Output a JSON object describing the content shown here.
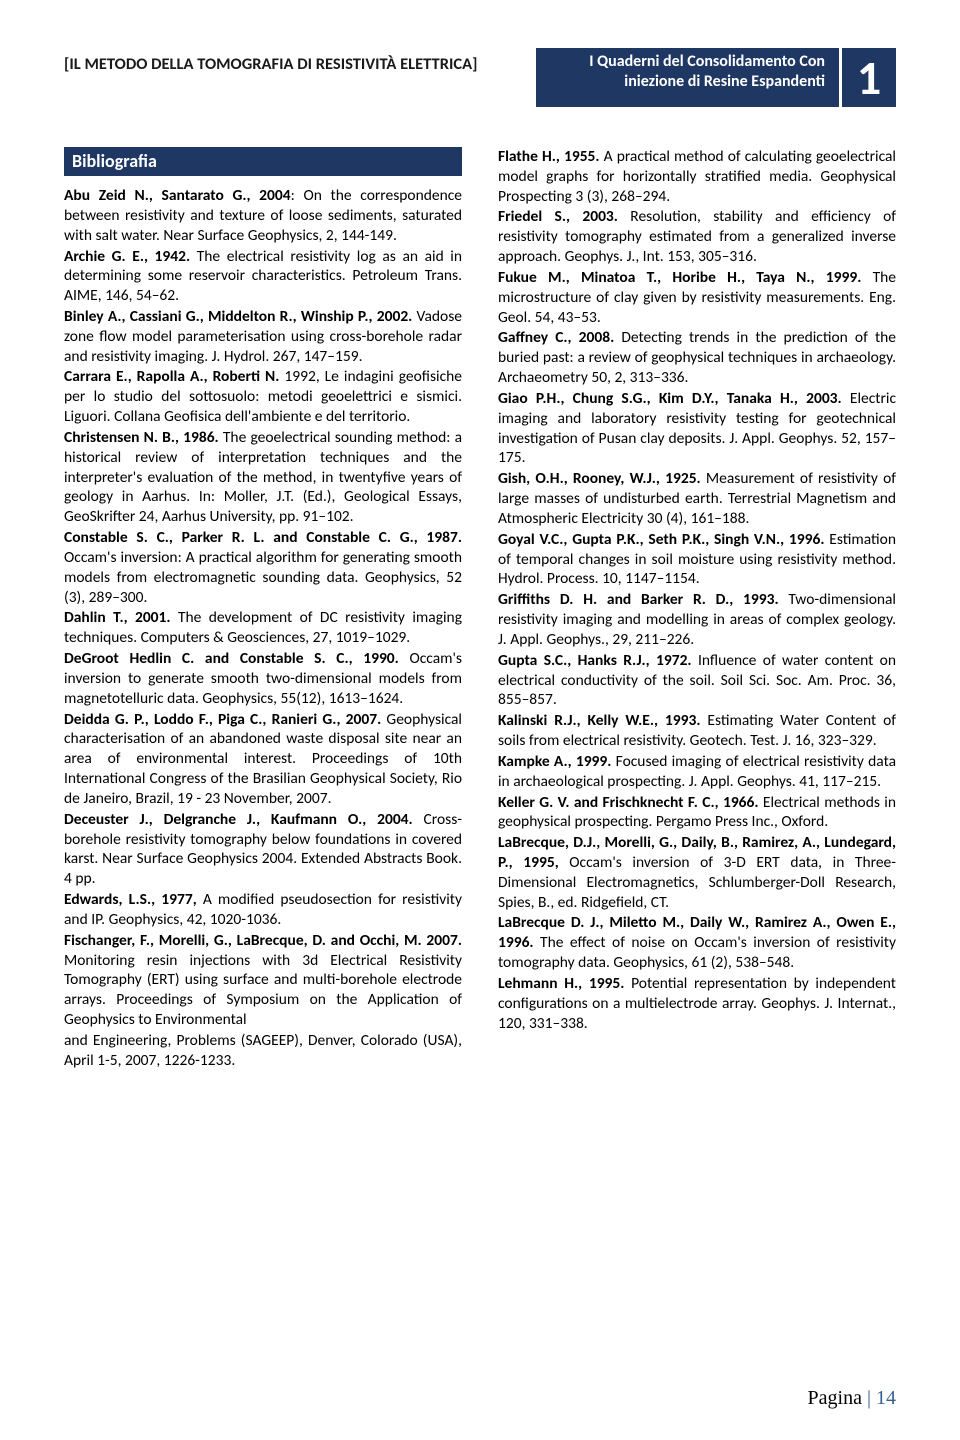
{
  "header": {
    "left": "[IL METODO DELLA TOMOGRAFIA DI RESISTIVITÀ ELETTRICA]",
    "right_line1": "I Quaderni del Consolidamento Con",
    "right_line2": "iniezione di  Resine Espandenti",
    "chapter_num": "1",
    "colors": {
      "banner_bg": "#1f3763",
      "banner_text": "#ffffff"
    }
  },
  "section_heading": "Bibliografia",
  "refs_left": [
    {
      "a": "Abu Zeid N., Santarato G., 2004",
      "t": ": On the correspondence between resistivity and texture of loose sediments, saturated with salt water. Near Surface Geophysics, 2, 144-149."
    },
    {
      "a": "Archie G. E., 1942.",
      "t": " The electrical resistivity log as an aid in determining some reservoir characteristics. Petroleum Trans. AIME, 146, 54–62."
    },
    {
      "a": "Binley A., Cassiani G., Middelton R., Winship P., 2002.",
      "t": " Vadose zone flow model parameterisation using cross-borehole radar and resistivity imaging. J. Hydrol. 267, 147–159."
    },
    {
      "a": "Carrara E., Rapolla A., Roberti N.",
      "t": " 1992, Le indagini geofisiche per lo studio del sottosuolo: metodi geoelettrici e sismici. Liguori. Collana Geofisica dell'ambiente e del territorio."
    },
    {
      "a": "Christensen N. B., 1986.",
      "t": " The geoelectrical sounding method: a historical review of interpretation techniques and the interpreter's evaluation of the method, in twentyfive years of geology in Aarhus. In: Moller, J.T. (Ed.), Geological Essays, GeoSkrifter 24, Aarhus University, pp. 91–102."
    },
    {
      "a": "Constable S. C., Parker R. L. and Constable C. G., 1987.",
      "t": " Occam's inversion: A practical algorithm for generating smooth models from electromagnetic sounding data. Geophysics, 52 (3), 289–300."
    },
    {
      "a": "Dahlin T., 2001.",
      "t": " The development of DC resistivity imaging techniques. Computers & Geosciences, 27, 1019–1029."
    },
    {
      "a": "DeGroot Hedlin C. and Constable S. C., 1990.",
      "t": " Occam's inversion to generate smooth two-dimensional models from magnetotelluric data. Geophysics, 55(12), 1613–1624."
    },
    {
      "a": "Deidda G. P., Loddo F., Piga C., Ranieri G., 2007.",
      "t": " Geophysical characterisation of an abandoned waste disposal site near an area of environmental interest. Proceedings of 10th International Congress of the Brasilian Geophysical Society, Rio de Janeiro, Brazil, 19 - 23 November, 2007."
    },
    {
      "a": "Deceuster J., Delgranche J., Kaufmann O., 2004.",
      "t": " Cross-borehole resistivity tomography below foundations in covered karst. Near Surface Geophysics 2004. Extended Abstracts Book. 4 pp."
    },
    {
      "a": "Edwards, L.S., 1977,",
      "t": " A modified pseudosection for resistivity and IP. Geophysics, 42, 1020-1036."
    },
    {
      "a": "Fischanger, F., Morelli, G., LaBrecque, D. and Occhi, M. 2007.",
      "t": " Monitoring resin injections with 3d Electrical Resistivity Tomography (ERT) using surface and multi-borehole electrode arrays. Proceedings of Symposium on the Application of Geophysics to Environmental"
    }
  ],
  "refs_right": [
    {
      "a": "",
      "t": "and Engineering, Problems (SAGEEP), Denver, Colorado (USA), April 1-5, 2007, 1226-1233."
    },
    {
      "a": "Flathe H., 1955.",
      "t": " A practical method of calculating geoelectrical model graphs for horizontally stratified media. Geophysical Prospecting 3 (3), 268–294."
    },
    {
      "a": "Friedel S., 2003.",
      "t": " Resolution, stability and efficiency of resistivity tomography estimated from a generalized inverse approach. Geophys. J., Int. 153, 305–316."
    },
    {
      "a": "Fukue M., Minatoa T., Horibe H., Taya N., 1999.",
      "t": " The microstructure of clay given by resistivity measurements. Eng. Geol. 54, 43–53."
    },
    {
      "a": "Gaffney C., 2008.",
      "t": " Detecting trends in the prediction of the buried past: a review of geophysical techniques in archaeology. Archaeometry 50, 2, 313–336."
    },
    {
      "a": "Giao P.H., Chung S.G., Kim D.Y., Tanaka H., 2003.",
      "t": " Electric imaging and laboratory resistivity testing for geotechnical investigation of Pusan clay deposits. J. Appl. Geophys. 52, 157–175."
    },
    {
      "a": "Gish, O.H., Rooney, W.J., 1925.",
      "t": " Measurement of resistivity of large masses of undisturbed earth. Terrestrial Magnetism and Atmospheric Electricity 30 (4), 161–188."
    },
    {
      "a": "Goyal V.C., Gupta P.K., Seth P.K., Singh V.N., 1996.",
      "t": " Estimation of temporal changes in soil moisture using resistivity method. Hydrol. Process. 10, 1147–1154."
    },
    {
      "a": "Griffiths D. H. and Barker R. D., 1993.",
      "t": " Two-dimensional resistivity imaging and modelling in areas of complex geology. J. Appl. Geophys., 29, 211–226."
    },
    {
      "a": "Gupta S.C., Hanks R.J., 1972.",
      "t": " Influence of water content on electrical conductivity of the soil. Soil Sci. Soc. Am. Proc. 36, 855–857."
    },
    {
      "a": "Kalinski R.J., Kelly W.E., 1993.",
      "t": " Estimating Water Content of soils from electrical resistivity. Geotech. Test. J. 16, 323–329."
    },
    {
      "a": "Kampke A., 1999.",
      "t": " Focused imaging of electrical resistivity data in archaeological prospecting. J. Appl. Geophys. 41, 117–215."
    },
    {
      "a": "Keller G. V. and Frischknecht F. C., 1966.",
      "t": " Electrical methods in geophysical prospecting. Pergamo Press Inc., Oxford."
    },
    {
      "a": "LaBrecque, D.J., Morelli, G., Daily, B., Ramirez, A., Lundegard, P., 1995,",
      "t": " Occam's inversion of 3-D ERT data, in Three-Dimensional Electromagnetics, Schlumberger-Doll Research, Spies, B., ed. Ridgefield, CT."
    },
    {
      "a": "LaBrecque D. J., Miletto M., Daily W., Ramirez A., Owen E., 1996.",
      "t": " The effect of noise on Occam's inversion of resistivity tomography data. Geophysics, 61 (2), 538–548."
    },
    {
      "a": "Lehmann H., 1995.",
      "t": " Potential representation by independent configurations on a multielectrode array. Geophys. J. Internat., 120, 331–338."
    }
  ],
  "footer": {
    "label": "Pagina",
    "sep": " | ",
    "num": "14",
    "color": "#365f91"
  }
}
